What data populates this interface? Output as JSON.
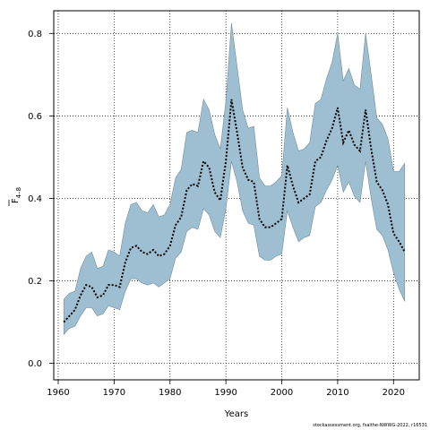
{
  "chart_data": {
    "type": "area",
    "xlabel": "Years",
    "ylabel_main": "F",
    "ylabel_sub": "4–8",
    "xlim": [
      1959.2,
      2024.6
    ],
    "ylim": [
      -0.04,
      0.855
    ],
    "xticks": [
      1960,
      1970,
      1980,
      1990,
      2000,
      2010,
      2020
    ],
    "yticks": [
      0.0,
      0.2,
      0.4,
      0.6,
      0.8
    ],
    "ytick_labels": [
      "0.0",
      "0.2",
      "0.4",
      "0.6",
      "0.8"
    ],
    "grid": true,
    "band_color": "#9ebfd2",
    "band_edge_color": "#6f8c9c",
    "line_color": "#000000",
    "series": [
      {
        "role": "estimate",
        "x": [
          1961,
          1962,
          1963,
          1964,
          1965,
          1966,
          1967,
          1968,
          1969,
          1970,
          1971,
          1972,
          1973,
          1974,
          1975,
          1976,
          1977,
          1978,
          1979,
          1980,
          1981,
          1982,
          1983,
          1984,
          1985,
          1986,
          1987,
          1988,
          1989,
          1990,
          1991,
          1992,
          1993,
          1994,
          1995,
          1996,
          1997,
          1998,
          1999,
          2000,
          2001,
          2002,
          2003,
          2004,
          2005,
          2006,
          2007,
          2008,
          2009,
          2010,
          2011,
          2012,
          2013,
          2014,
          2015,
          2016,
          2017,
          2018,
          2019,
          2020,
          2021,
          2022
        ],
        "y": [
          0.1,
          0.115,
          0.13,
          0.165,
          0.19,
          0.185,
          0.16,
          0.165,
          0.19,
          0.19,
          0.185,
          0.245,
          0.28,
          0.285,
          0.27,
          0.265,
          0.275,
          0.26,
          0.265,
          0.285,
          0.335,
          0.355,
          0.42,
          0.435,
          0.43,
          0.49,
          0.475,
          0.415,
          0.395,
          0.49,
          0.64,
          0.56,
          0.475,
          0.445,
          0.44,
          0.35,
          0.33,
          0.33,
          0.34,
          0.35,
          0.48,
          0.43,
          0.39,
          0.4,
          0.41,
          0.49,
          0.5,
          0.54,
          0.57,
          0.62,
          0.535,
          0.565,
          0.53,
          0.515,
          0.615,
          0.52,
          0.44,
          0.42,
          0.385,
          0.315,
          0.295,
          0.27
        ]
      },
      {
        "role": "lower",
        "x": [
          1961,
          1962,
          1963,
          1964,
          1965,
          1966,
          1967,
          1968,
          1969,
          1970,
          1971,
          1972,
          1973,
          1974,
          1975,
          1976,
          1977,
          1978,
          1979,
          1980,
          1981,
          1982,
          1983,
          1984,
          1985,
          1986,
          1987,
          1988,
          1989,
          1990,
          1991,
          1992,
          1993,
          1994,
          1995,
          1996,
          1997,
          1998,
          1999,
          2000,
          2001,
          2002,
          2003,
          2004,
          2005,
          2006,
          2007,
          2008,
          2009,
          2010,
          2011,
          2012,
          2013,
          2014,
          2015,
          2016,
          2017,
          2018,
          2019,
          2020,
          2021,
          2022
        ],
        "y": [
          0.07,
          0.085,
          0.09,
          0.115,
          0.135,
          0.135,
          0.115,
          0.12,
          0.14,
          0.135,
          0.13,
          0.175,
          0.205,
          0.205,
          0.195,
          0.19,
          0.195,
          0.185,
          0.195,
          0.205,
          0.255,
          0.27,
          0.32,
          0.33,
          0.325,
          0.375,
          0.36,
          0.32,
          0.305,
          0.375,
          0.49,
          0.44,
          0.37,
          0.34,
          0.335,
          0.26,
          0.25,
          0.25,
          0.26,
          0.265,
          0.37,
          0.33,
          0.295,
          0.305,
          0.31,
          0.38,
          0.39,
          0.42,
          0.445,
          0.48,
          0.415,
          0.44,
          0.405,
          0.39,
          0.49,
          0.4,
          0.325,
          0.31,
          0.275,
          0.22,
          0.18,
          0.15
        ]
      },
      {
        "role": "upper",
        "x": [
          1961,
          1962,
          1963,
          1964,
          1965,
          1966,
          1967,
          1968,
          1969,
          1970,
          1971,
          1972,
          1973,
          1974,
          1975,
          1976,
          1977,
          1978,
          1979,
          1980,
          1981,
          1982,
          1983,
          1984,
          1985,
          1986,
          1987,
          1988,
          1989,
          1990,
          1991,
          1992,
          1993,
          1994,
          1995,
          1996,
          1997,
          1998,
          1999,
          2000,
          2001,
          2002,
          2003,
          2004,
          2005,
          2006,
          2007,
          2008,
          2009,
          2010,
          2011,
          2012,
          2013,
          2014,
          2015,
          2016,
          2017,
          2018,
          2019,
          2020,
          2021,
          2022
        ],
        "y": [
          0.155,
          0.17,
          0.175,
          0.23,
          0.26,
          0.27,
          0.23,
          0.235,
          0.275,
          0.27,
          0.26,
          0.34,
          0.385,
          0.39,
          0.37,
          0.365,
          0.385,
          0.355,
          0.36,
          0.385,
          0.45,
          0.47,
          0.56,
          0.565,
          0.56,
          0.64,
          0.615,
          0.555,
          0.52,
          0.635,
          0.825,
          0.72,
          0.615,
          0.57,
          0.575,
          0.45,
          0.43,
          0.43,
          0.44,
          0.455,
          0.62,
          0.56,
          0.515,
          0.52,
          0.535,
          0.63,
          0.64,
          0.69,
          0.73,
          0.8,
          0.685,
          0.715,
          0.675,
          0.665,
          0.8,
          0.7,
          0.595,
          0.58,
          0.545,
          0.465,
          0.465,
          0.485
        ]
      }
    ]
  },
  "footer": {
    "credit": "stockassessment.org, fsaithe-NWWG-2022, r16531"
  }
}
